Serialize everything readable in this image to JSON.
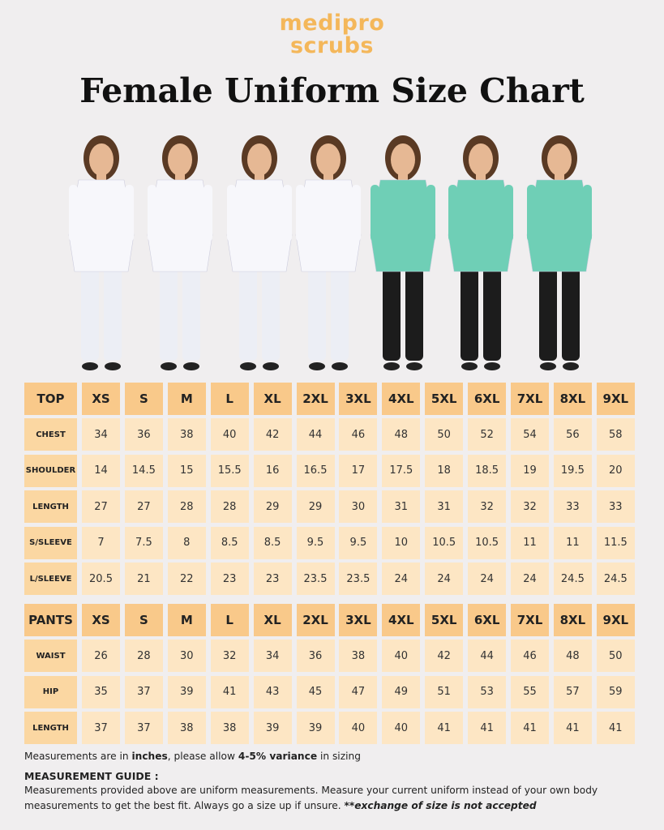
{
  "brand": [
    "medipro",
    "scrubs"
  ],
  "title": "Female Uniform Size Chart",
  "top_table": {
    "header": [
      "TOP",
      "XS",
      "S",
      "M",
      "L",
      "XL",
      "2XL",
      "3XL",
      "4XL",
      "5XL",
      "6XL",
      "7XL",
      "8XL",
      "9XL"
    ],
    "rows": [
      [
        "CHEST",
        34,
        36,
        38,
        40,
        42,
        44,
        46,
        48,
        50,
        52,
        54,
        56,
        58
      ],
      [
        "SHOULDER",
        14,
        14.5,
        15,
        15.5,
        16,
        16.5,
        17,
        17.5,
        18,
        18.5,
        19,
        19.5,
        20
      ],
      [
        "LENGTH",
        27,
        27,
        28,
        28,
        29,
        29,
        30,
        31,
        31,
        32,
        32,
        33,
        33
      ],
      [
        "S/SLEEVE",
        7,
        7.5,
        8,
        8.5,
        8.5,
        9.5,
        9.5,
        10,
        10.5,
        10.5,
        11,
        11,
        11.5
      ],
      [
        "L/SLEEVE",
        20.5,
        21,
        22,
        23,
        23,
        23.5,
        23.5,
        24,
        24,
        24,
        24,
        24.5,
        24.5
      ]
    ]
  },
  "pants_table": {
    "header": [
      "PANTS",
      "XS",
      "S",
      "M",
      "L",
      "XL",
      "2XL",
      "3XL",
      "4XL",
      "5XL",
      "6XL",
      "7XL",
      "8XL",
      "9XL"
    ],
    "rows": [
      [
        "WAIST",
        26,
        28,
        30,
        32,
        34,
        36,
        38,
        40,
        42,
        44,
        46,
        48,
        50
      ],
      [
        "HIP",
        35,
        37,
        39,
        41,
        43,
        45,
        47,
        49,
        51,
        53,
        55,
        57,
        59
      ],
      [
        "LENGTH",
        37,
        37,
        38,
        38,
        39,
        39,
        40,
        40,
        41,
        41,
        41,
        41,
        41
      ]
    ]
  },
  "note": [
    "Measurements are in ",
    "inches",
    ", please allow ",
    "4-5% variance",
    " in sizing"
  ],
  "guide": {
    "heading": "MEASUREMENT GUIDE :",
    "text": [
      "Measurements provided above are uniform measurements. Measure your current uniform instead of your own body measurements to get the best fit. Always go a size up if unsure. ",
      "**exchange of size is not accepted"
    ]
  }
}
